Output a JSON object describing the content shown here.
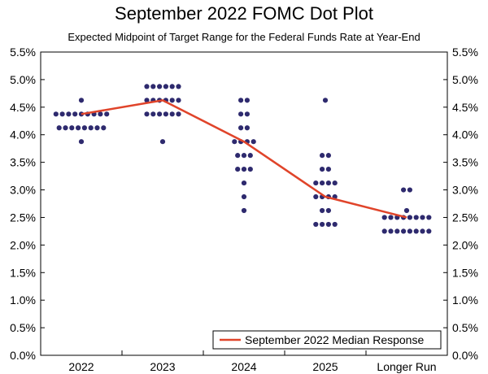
{
  "chart_data": {
    "type": "scatter",
    "title": "September 2022 FOMC Dot Plot",
    "subtitle": "Expected Midpoint of Target Range for the Federal Funds Rate at Year-End",
    "categories": [
      "2022",
      "2023",
      "2024",
      "2025",
      "Longer Run"
    ],
    "y_ticks": [
      "0.0%",
      "0.5%",
      "1.0%",
      "1.5%",
      "2.0%",
      "2.5%",
      "3.0%",
      "3.5%",
      "4.0%",
      "4.5%",
      "5.0%",
      "5.5%"
    ],
    "ylim": [
      0,
      5.5
    ],
    "grid": false,
    "dot_color": "#2e2a6e",
    "line_color": "#e0442a",
    "dots": [
      {
        "category": "2022",
        "y": 4.625,
        "count": 1
      },
      {
        "category": "2022",
        "y": 4.375,
        "count": 9
      },
      {
        "category": "2022",
        "y": 4.125,
        "count": 8
      },
      {
        "category": "2022",
        "y": 3.875,
        "count": 1
      },
      {
        "category": "2023",
        "y": 4.875,
        "count": 6
      },
      {
        "category": "2023",
        "y": 4.625,
        "count": 6
      },
      {
        "category": "2023",
        "y": 4.375,
        "count": 6
      },
      {
        "category": "2023",
        "y": 3.875,
        "count": 1
      },
      {
        "category": "2024",
        "y": 4.625,
        "count": 2
      },
      {
        "category": "2024",
        "y": 4.375,
        "count": 2
      },
      {
        "category": "2024",
        "y": 4.125,
        "count": 2
      },
      {
        "category": "2024",
        "y": 3.875,
        "count": 4
      },
      {
        "category": "2024",
        "y": 3.625,
        "count": 3
      },
      {
        "category": "2024",
        "y": 3.375,
        "count": 3
      },
      {
        "category": "2024",
        "y": 3.125,
        "count": 1
      },
      {
        "category": "2024",
        "y": 2.875,
        "count": 1
      },
      {
        "category": "2024",
        "y": 2.625,
        "count": 1
      },
      {
        "category": "2025",
        "y": 4.625,
        "count": 1
      },
      {
        "category": "2025",
        "y": 3.625,
        "count": 2
      },
      {
        "category": "2025",
        "y": 3.375,
        "count": 2
      },
      {
        "category": "2025",
        "y": 3.125,
        "count": 4
      },
      {
        "category": "2025",
        "y": 2.875,
        "count": 4
      },
      {
        "category": "2025",
        "y": 2.625,
        "count": 2
      },
      {
        "category": "2025",
        "y": 2.375,
        "count": 4
      },
      {
        "category": "Longer Run",
        "y": 3.0,
        "count": 2
      },
      {
        "category": "Longer Run",
        "y": 2.625,
        "count": 1
      },
      {
        "category": "Longer Run",
        "y": 2.5,
        "count": 8
      },
      {
        "category": "Longer Run",
        "y": 2.25,
        "count": 8
      }
    ],
    "series": [
      {
        "name": "September 2022 Median Response",
        "values": [
          4.375,
          4.625,
          3.875,
          2.875,
          2.5
        ]
      }
    ],
    "legend": {
      "position": "bottom-right",
      "label": "September 2022 Median Response"
    }
  }
}
